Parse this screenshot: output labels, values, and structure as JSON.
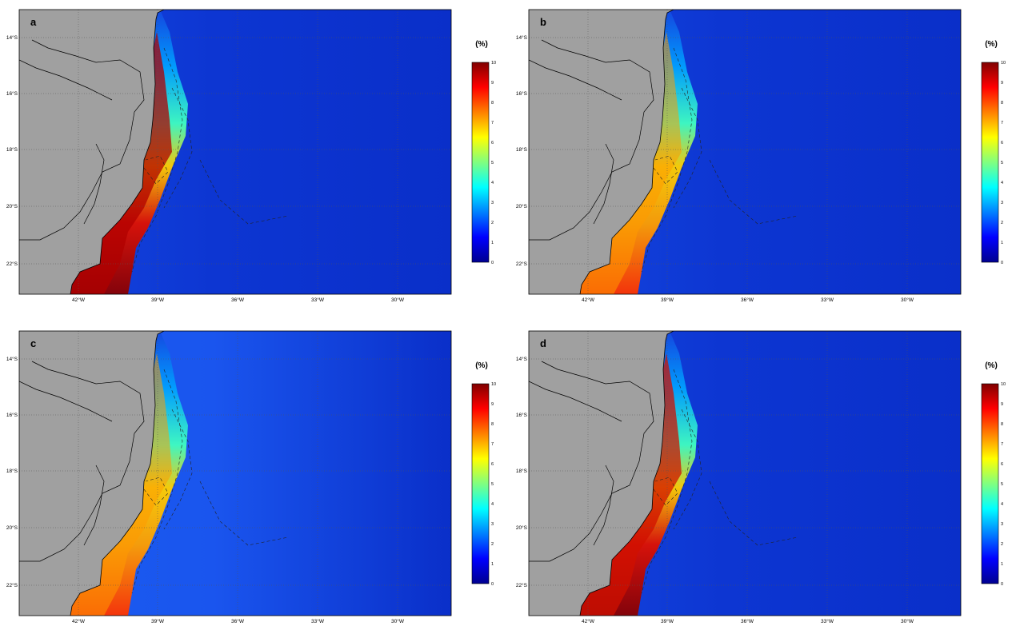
{
  "panels": [
    {
      "label": "a",
      "colorbar_title": "(%)",
      "coastal_peak": "high"
    },
    {
      "label": "b",
      "colorbar_title": "(%)",
      "coastal_peak": "medium"
    },
    {
      "label": "c",
      "colorbar_title": "(%)",
      "coastal_peak": "medium"
    },
    {
      "label": "d",
      "colorbar_title": "(%)",
      "coastal_peak": "high"
    }
  ],
  "lat_ticks": [
    "14°S",
    "16°S",
    "18°S",
    "20°S",
    "22°S"
  ],
  "lon_ticks": [
    "42°W",
    "39°W",
    "36°W",
    "33°W",
    "30°W"
  ],
  "colorbar_ticks": [
    "0",
    "1",
    "2",
    "3",
    "4",
    "5",
    "6",
    "7",
    "8",
    "9",
    "10"
  ],
  "colormap": [
    "#00008f",
    "#0000ff",
    "#0080ff",
    "#00ffff",
    "#80ff80",
    "#ffff00",
    "#ff8000",
    "#ff0000",
    "#800000"
  ],
  "colors": {
    "land": "#a0a0a0",
    "ocean_offshore": "#0a2fc9",
    "grid": "#555555"
  }
}
